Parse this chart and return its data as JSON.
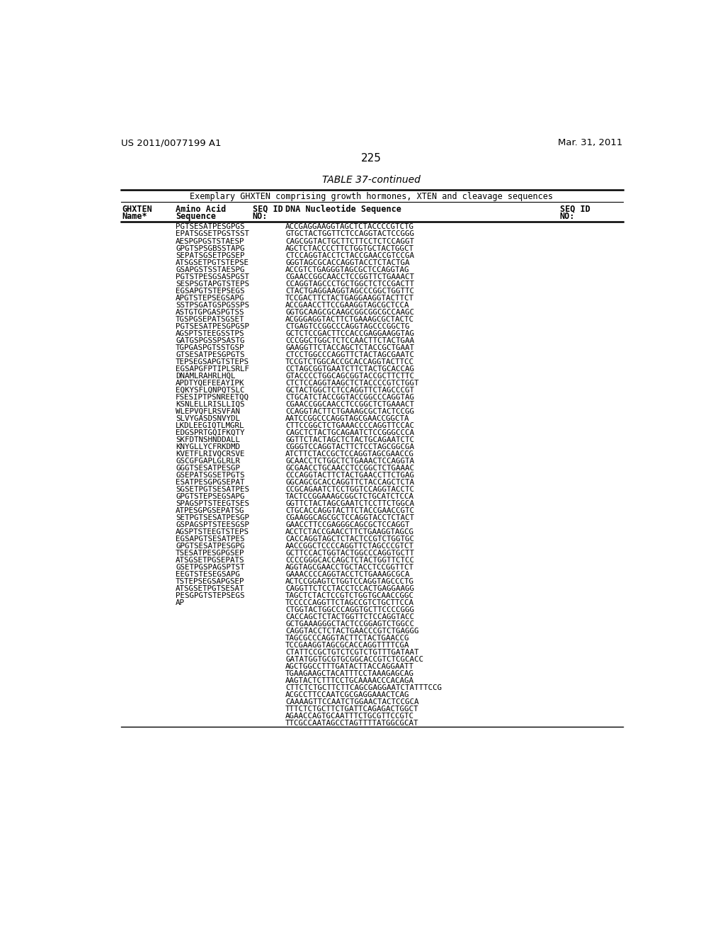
{
  "patent_number": "US 2011/0077199 A1",
  "patent_date": "Mar. 31, 2011",
  "page_number": "225",
  "table_title": "TABLE 37-continued",
  "table_subtitle": "Exemplary GHXTEN comprising growth hormones, XTEN and cleavage sequences",
  "rows": [
    [
      "PGTSESATPESGPGS",
      "ACCGAGGAAGGTAGCTCTACCCCGTCTG"
    ],
    [
      "EPATSGSETPGSTSST",
      "GTGCTACTGGTTCTCCAGGTACTCCGGG"
    ],
    [
      "AESPGPGSTSTAESP",
      "CAGCGGTACTGCTTCTTCCTCTCCAGGT"
    ],
    [
      "GPGTSPSGBSSTAPG",
      "AGCTCTACCCCTTCTGGTGCTACTGGCT"
    ],
    [
      "SEPATSGSETPGSEP",
      "CTCCAGGTACCTCTACCGAACCGTCCGA"
    ],
    [
      "ATSGSETPGTSTEPSE",
      "GGGTAGCGCACCAGGTACCTCTACTGA"
    ],
    [
      "GSAPGSTSSTAESPG",
      "ACCGTCTGAGGGTAGCGCTCCAGGTAG"
    ],
    [
      "PGTSTPESGSASPGST",
      "CGAACCGGCAACCTCCGGTTCTGAAACT"
    ],
    [
      "SESPSGTAPGTSTEPS",
      "CCAGGTAGCCCTGCTGGCTCTCCGACTT"
    ],
    [
      "EGSAPGTSTEPSEGS",
      "CTACTGAGGAAGGTAGCCCGGCTGGTTC"
    ],
    [
      "APGTSTEPSEGSAPG",
      "TCCGACTTCTACTGAGGAAGGTACTTCT"
    ],
    [
      "SSTPSGATGSPGSSPS",
      "ACCGAACCTTCCGAAGGTAGCGCTCCA"
    ],
    [
      "ASTGTGPGASPGTSS",
      "GGTGCAAGCGCAAGCGGCGGCGCCAAGC"
    ],
    [
      "TGSPGSEPATSGSET",
      "ACGGGAGGTACTTCTGAAAGCGCTACTC"
    ],
    [
      "PGTSESATPESGPGSP",
      "CTGAGTCCGGCCCAGGTAGCCCGGCTG"
    ],
    [
      "AGSPTSTEEGSSTPS",
      "GCTCTCCGACTTCCACCGAGGAAGGTAG"
    ],
    [
      "GATGSPGSSPSASTG",
      "CCCGGCTGGCTCTCCAACTTCTACTGAA"
    ],
    [
      "TGPGASPGTSSTGSP",
      "GAAGGTTCTACCAGCTCTACCGCTGAAT"
    ],
    [
      "GTSESATPESGPGTS",
      "CTCCTGGCCCAGGTTCTACTAGCGAATC"
    ],
    [
      "TEPSEGSAPGTSTEPS",
      "TCCGTCTGGCACCGCACCAGGTACTTCC"
    ],
    [
      "EGSAPGFPTIPLSRLF",
      "CCTAGCGGTGAATCTTCTACTGCACCAG"
    ],
    [
      "DNAMLRAHRLHQL",
      "GTACCCCTGGCAGCGGTACCGCTTCTTC"
    ],
    [
      "APDTYQEFEEAYIPK",
      "CTCTCCAGGTAAGCTCTACCCCGTCTGGT"
    ],
    [
      "EQKYSFLQNPQTSLC",
      "GCTACTGGCTCTCCAGGTTCTAGCCCGT"
    ],
    [
      "FSESIPTPSNREETQQ",
      "CTGCATCTACCGGTACCGGCCCAGGTAG"
    ],
    [
      "KSNLELLRISLLIQS",
      "CGAACCGGCAACCTCCGGCTCTGAAACT"
    ],
    [
      "WLEPVQFLRSVFAN",
      "CCAGGTACTTCTGAAAGCGCTACTCCGG"
    ],
    [
      "SLVYGASDSNVYDL",
      "AATCCGGCCCAGGTAGCGAACCGGCTA"
    ],
    [
      "LKDLEEGIQTLMGRL",
      "CTTCCGGCTCTGAAACCCCAGGTTCCAC"
    ],
    [
      "EDGSPRTGQIFKQTY",
      "CAGCTCTACTGCAGAATCTCCGGGCCCA"
    ],
    [
      "SKFDTNSHNDDALL",
      "GGTTCTACTAGCTCTACTGCAGAATCTC"
    ],
    [
      "KNYGLLYCFRKDMD",
      "CGGGTCCAGGTACTTCTCCTAGCGGCGA"
    ],
    [
      "KVETFLRIVQCRSVE",
      "ATCTTCTACCGCTCCAGGTAGCGAACCG"
    ],
    [
      "GSCGFGAPLGLRLR",
      "GCAACCTCTGGCTCTGAAACTCCAGGTA"
    ],
    [
      "GGGTSESATPESGP",
      "GCGAACCTGCAACCTCCGGCTCTGAAAC"
    ],
    [
      "GSEPATSGSETPGTS",
      "CCCAGGTACTTCTACTGAACCTTCTGAG"
    ],
    [
      "ESATPESGPGSEPAT",
      "GGCAGCGCACCAGGTTCTACCAGCTCTA"
    ],
    [
      "SGSETPGTSESATPES",
      "CCGCAGAATCTCCTGGTCCAGGTACCTC"
    ],
    [
      "GPGTSTEPSEGSAPG",
      "TACTCCGGAAAGCGGCTCTGCATCTCCA"
    ],
    [
      "SPAGSPTSTEEGTSES",
      "GGTTCTACTAGCGAATCTCCTTCTGGCA"
    ],
    [
      "ATPESGPGSEPATSG",
      "CTGCACCAGGTACTTCTACCGAACCGTC"
    ],
    [
      "SETPGTSESATPESGP",
      "CGAAGGCAGCGCTCCAGGTACCTCTACT"
    ],
    [
      "GSPAGSPTSTEESGSP",
      "GAACCTTCCGAGGGCAGCGCTCCAGGT"
    ],
    [
      "AGSPTSTEEGTSTEPS",
      "ACCTCTACCGAACCTTCTGAAGGTAGCG"
    ],
    [
      "EGSAPGTSESATPES",
      "CACCAGGTAGCTCTACTCCGTCTGGTGC"
    ],
    [
      "GPGTSESATPESGPG",
      "AACCGGCTCCCCAGGTTCTAGCCCGTCT"
    ],
    [
      "TSESATPESGPGSEP",
      "GCTTCCACTGGTACTGGCCCAGGTGCTT"
    ],
    [
      "ATSGSETPGSEPATS",
      "CCCCGGGCACCAGCTCTACTGGTTCTCC"
    ],
    [
      "GSETPGSPAGSPTST",
      "AGGTAGCGAACCTGCTACCTCCGGTTCT"
    ],
    [
      "EEGTSTESEGSAPG",
      "GAAACCCCAGGTACCTCTGAAAGCGCA"
    ],
    [
      "TSTEPSEGSAPGSEP",
      "ACTCCGGAGTCTGGTCCAGGTAGCCCTG"
    ],
    [
      "ATSGSETPGTSESAT",
      "CAGGTTCTCCTACCTCCACTGAGGAAGG"
    ],
    [
      "PESGPGTSTEPSEGS",
      "TAGCTCTACTCCGTCTGGTGCAACCGGC"
    ],
    [
      "AP",
      "TCCCCCAGGTTCTAGCCGTCTGCTTCCA"
    ],
    [
      "",
      "CTGGTACTGGCCCAGGTGCTTCCCCGGG"
    ],
    [
      "",
      "CACCAGCTCTACTGGTTCTCCAGGTACC"
    ],
    [
      "",
      "GCTGAAAGGGCTACTCCGGAGTCTGGCC"
    ],
    [
      "",
      "CAGGTACCTCTACTGAACCCGTCTGAGGG"
    ],
    [
      "",
      "TAGCGCCCAGGTACTTCTACTGAACCG"
    ],
    [
      "",
      "TCCGAAGGTAGCGCACCAGGTTTTCGA"
    ],
    [
      "",
      "CTATTCCGCTGTCTCGTCTGTTTGATAAT"
    ],
    [
      "",
      "GATATGGTGCGTGCGGCACCGTCTCGCACC"
    ],
    [
      "",
      "AGCTGGCCTTTGATACTTACCAGGAATT"
    ],
    [
      "",
      "TGAAGAAGCTACATTTCCTAAAGAGCAG"
    ],
    [
      "",
      "AAGTACTCTTTCCTGCAAAACCCACAGA"
    ],
    [
      "",
      "CTTCTCTGCTTCTTCAGCGAGGAATCTATTTCCG"
    ],
    [
      "",
      "ACGCCTTCCAATCGCGAGGAAACTCAG"
    ],
    [
      "",
      "CAAAAGTTCCAATCTGGAACTACTCCGCA"
    ],
    [
      "",
      "TTTCTCTGCTTCTGATTCAGAGACTGGCT"
    ],
    [
      "",
      "AGAACCAGTGCAATTTCTGCGTTCCGTC"
    ],
    [
      "",
      "TTCGCCAATAGCCTAGTTTTATGGCGCAT"
    ]
  ],
  "bg_color": "#ffffff",
  "text_color": "#000000"
}
